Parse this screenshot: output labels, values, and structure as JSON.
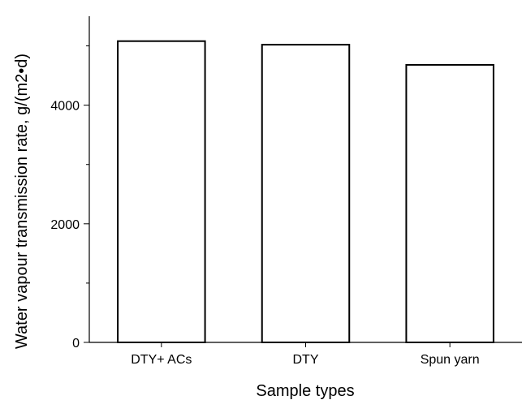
{
  "chart_data": {
    "type": "bar",
    "categories": [
      "DTY+ ACs",
      "DTY",
      "Spun yarn"
    ],
    "values": [
      5080,
      5020,
      4680
    ],
    "xlabel": "Sample types",
    "ylabel": "Water vapour transmission rate, g/(m2•d)",
    "ylim": [
      0,
      5500
    ],
    "yticks": [
      0,
      2000,
      4000
    ],
    "grid": false,
    "bar_fill": "#ffffff",
    "bar_stroke": "#000000"
  }
}
